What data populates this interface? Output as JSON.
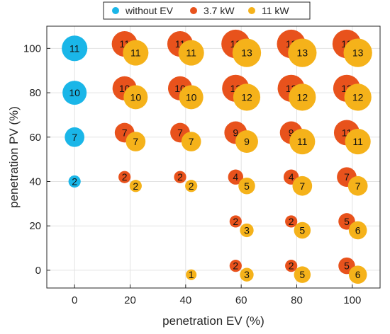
{
  "chart_data": {
    "type": "scatter",
    "title": "",
    "xlabel": "penetration EV (%)",
    "ylabel": "penetration PV (%)",
    "xlim": [
      -10,
      110
    ],
    "ylim": [
      -8,
      110
    ],
    "xticks": [
      0,
      20,
      40,
      60,
      80,
      100
    ],
    "yticks": [
      0,
      20,
      40,
      60,
      80,
      100
    ],
    "grid": true,
    "legend_position": "top",
    "series": [
      {
        "name": "without EV",
        "color": "#1AB6E8",
        "points": [
          {
            "x": 0,
            "y": 100,
            "value": 11
          },
          {
            "x": 0,
            "y": 80,
            "value": 10
          },
          {
            "x": 0,
            "y": 60,
            "value": 7
          },
          {
            "x": 0,
            "y": 40,
            "value": 2
          }
        ]
      },
      {
        "name": "3.7 kW",
        "color": "#E8521C",
        "points": [
          {
            "x": 20,
            "y": 100,
            "value": 11
          },
          {
            "x": 40,
            "y": 100,
            "value": 11
          },
          {
            "x": 60,
            "y": 100,
            "value": 13
          },
          {
            "x": 80,
            "y": 100,
            "value": 13
          },
          {
            "x": 100,
            "y": 100,
            "value": 13
          },
          {
            "x": 20,
            "y": 80,
            "value": 10
          },
          {
            "x": 40,
            "y": 80,
            "value": 10
          },
          {
            "x": 60,
            "y": 80,
            "value": 12
          },
          {
            "x": 80,
            "y": 80,
            "value": 12
          },
          {
            "x": 100,
            "y": 80,
            "value": 12
          },
          {
            "x": 20,
            "y": 60,
            "value": 7
          },
          {
            "x": 40,
            "y": 60,
            "value": 7
          },
          {
            "x": 60,
            "y": 60,
            "value": 9
          },
          {
            "x": 80,
            "y": 60,
            "value": 9
          },
          {
            "x": 100,
            "y": 60,
            "value": 11
          },
          {
            "x": 20,
            "y": 40,
            "value": 2
          },
          {
            "x": 40,
            "y": 40,
            "value": 2
          },
          {
            "x": 60,
            "y": 40,
            "value": 4
          },
          {
            "x": 80,
            "y": 40,
            "value": 4
          },
          {
            "x": 100,
            "y": 40,
            "value": 7
          },
          {
            "x": 60,
            "y": 20,
            "value": 2
          },
          {
            "x": 80,
            "y": 20,
            "value": 2
          },
          {
            "x": 100,
            "y": 20,
            "value": 5
          },
          {
            "x": 60,
            "y": 0,
            "value": 2
          },
          {
            "x": 80,
            "y": 0,
            "value": 2
          },
          {
            "x": 100,
            "y": 0,
            "value": 5
          }
        ]
      },
      {
        "name": "11 kW",
        "color": "#F5B21A",
        "points": [
          {
            "x": 20,
            "y": 100,
            "value": 11
          },
          {
            "x": 40,
            "y": 100,
            "value": 11
          },
          {
            "x": 60,
            "y": 100,
            "value": 13
          },
          {
            "x": 80,
            "y": 100,
            "value": 13
          },
          {
            "x": 100,
            "y": 100,
            "value": 13
          },
          {
            "x": 20,
            "y": 80,
            "value": 10
          },
          {
            "x": 40,
            "y": 80,
            "value": 10
          },
          {
            "x": 60,
            "y": 80,
            "value": 12
          },
          {
            "x": 80,
            "y": 80,
            "value": 12
          },
          {
            "x": 100,
            "y": 80,
            "value": 12
          },
          {
            "x": 20,
            "y": 60,
            "value": 7
          },
          {
            "x": 40,
            "y": 60,
            "value": 7
          },
          {
            "x": 60,
            "y": 60,
            "value": 9
          },
          {
            "x": 80,
            "y": 60,
            "value": 11
          },
          {
            "x": 100,
            "y": 60,
            "value": 11
          },
          {
            "x": 20,
            "y": 40,
            "value": 2
          },
          {
            "x": 40,
            "y": 40,
            "value": 2
          },
          {
            "x": 60,
            "y": 40,
            "value": 5
          },
          {
            "x": 80,
            "y": 40,
            "value": 7
          },
          {
            "x": 100,
            "y": 40,
            "value": 7
          },
          {
            "x": 60,
            "y": 20,
            "value": 3
          },
          {
            "x": 80,
            "y": 20,
            "value": 5
          },
          {
            "x": 100,
            "y": 20,
            "value": 6
          },
          {
            "x": 40,
            "y": 0,
            "value": 1
          },
          {
            "x": 60,
            "y": 0,
            "value": 3
          },
          {
            "x": 80,
            "y": 0,
            "value": 5
          },
          {
            "x": 100,
            "y": 0,
            "value": 6
          }
        ]
      }
    ]
  }
}
